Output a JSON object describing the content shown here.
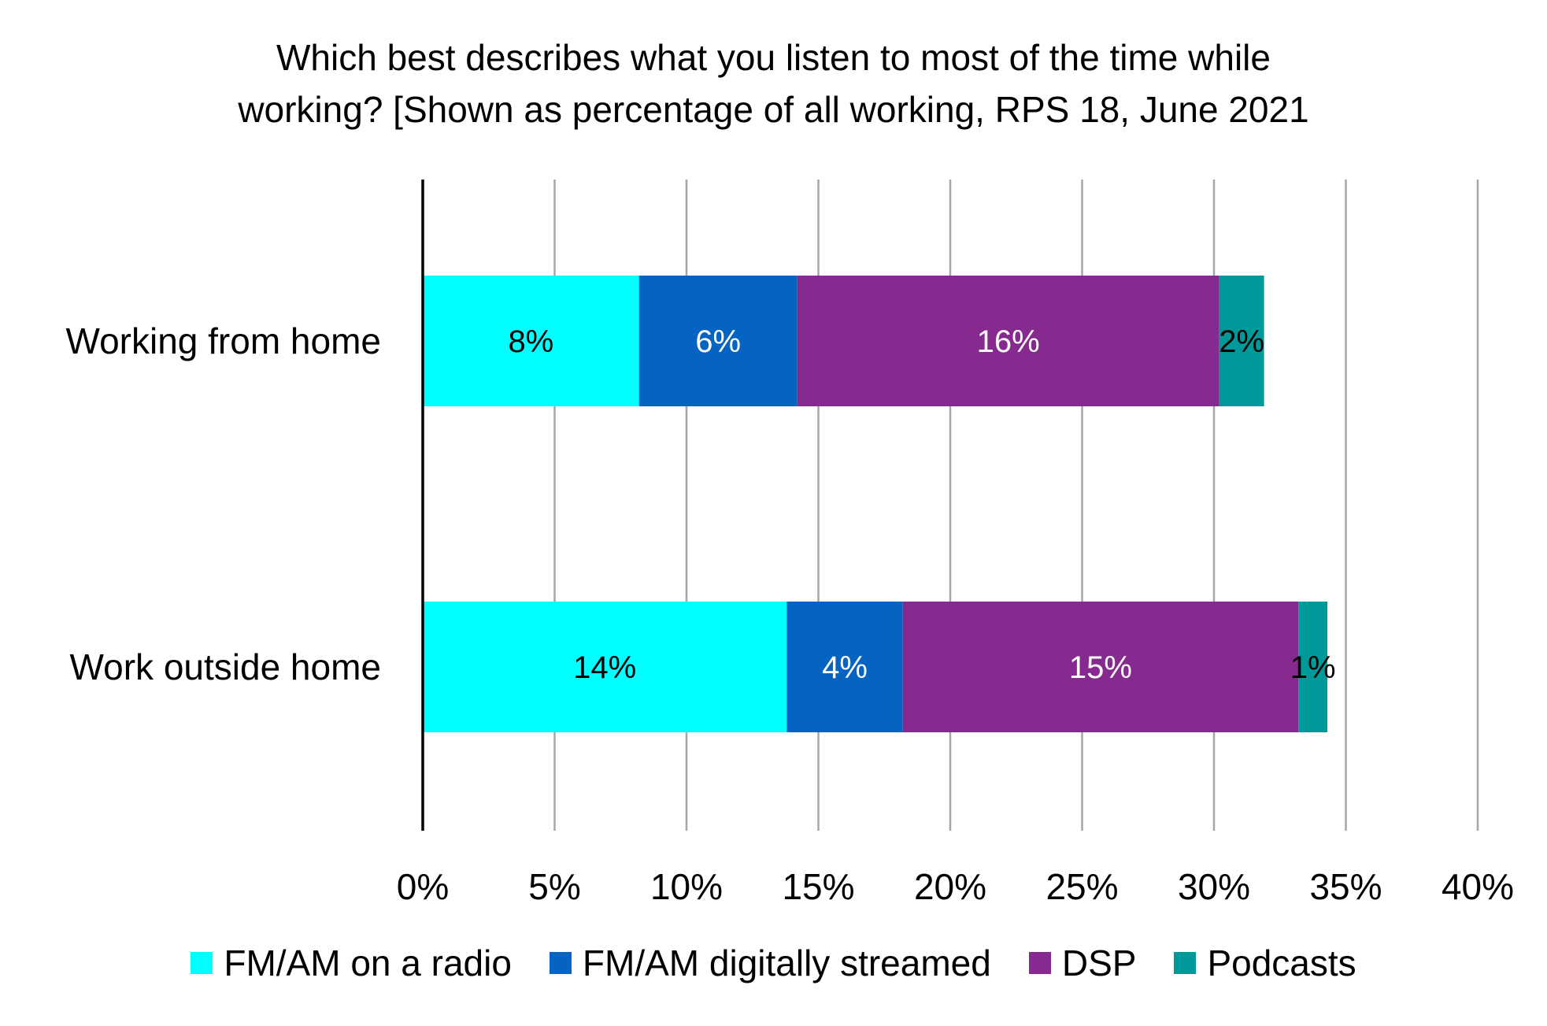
{
  "chart_data": {
    "type": "bar",
    "orientation": "horizontal",
    "stacked": true,
    "title_lines": [
      "Which best describes what you listen to most of the time while",
      "working? [Shown as percentage of all working, RPS 18, June 2021"
    ],
    "categories": [
      "Working from home",
      "Work outside home"
    ],
    "series": [
      {
        "name": "FM/AM on a radio",
        "color": "#00FFFF",
        "label_color": "#000000",
        "values": [
          8.2,
          13.8
        ],
        "labels": [
          "8%",
          "14%"
        ]
      },
      {
        "name": "FM/AM digitally streamed",
        "color": "#0563C1",
        "label_color": "#FFFFFF",
        "values": [
          6.0,
          4.4
        ],
        "labels": [
          "6%",
          "4%"
        ]
      },
      {
        "name": "DSP",
        "color": "#862A8F",
        "label_color": "#FFFFFF",
        "values": [
          16.0,
          15.0
        ],
        "labels": [
          "16%",
          "15%"
        ]
      },
      {
        "name": "Podcasts",
        "color": "#00999A",
        "label_color": "#000000",
        "values": [
          1.7,
          1.1
        ],
        "labels": [
          "2%",
          "1%"
        ]
      }
    ],
    "xlim": [
      0,
      40
    ],
    "xticks": [
      0,
      5,
      10,
      15,
      20,
      25,
      30,
      35,
      40
    ],
    "xtick_labels": [
      "0%",
      "5%",
      "10%",
      "15%",
      "20%",
      "25%",
      "30%",
      "35%",
      "40%"
    ],
    "grid": "vertical",
    "legend_position": "bottom"
  }
}
